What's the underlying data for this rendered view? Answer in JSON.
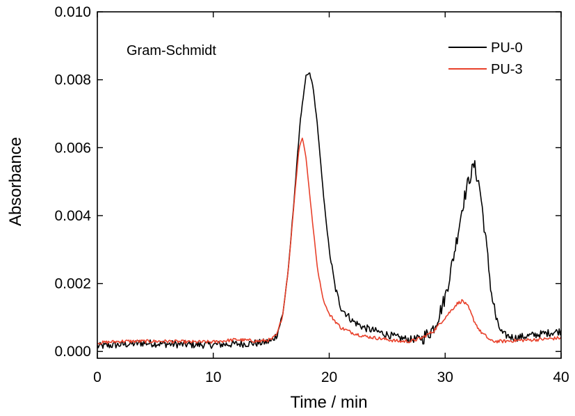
{
  "chart_data": {
    "type": "line",
    "title": "",
    "annotation": "Gram-Schmidt",
    "xlabel": "Time / min",
    "ylabel": "Absorbance",
    "xlim": [
      0,
      40
    ],
    "ylim": [
      -0.0002,
      0.01
    ],
    "x_ticks": [
      0,
      10,
      20,
      30,
      40
    ],
    "x_tick_labels": [
      "0",
      "10",
      "20",
      "30",
      "40"
    ],
    "y_ticks": [
      0.0,
      0.002,
      0.004,
      0.006,
      0.008,
      0.01
    ],
    "y_tick_labels": [
      "0.000",
      "0.002",
      "0.004",
      "0.006",
      "0.008",
      "0.010"
    ],
    "grid": false,
    "legend_position": "top-right",
    "series": [
      {
        "name": "PU-0",
        "color": "#000000",
        "noisy": true,
        "points": [
          [
            0,
            0.00015
          ],
          [
            2,
            0.0002
          ],
          [
            4,
            0.00025
          ],
          [
            6,
            0.00022
          ],
          [
            8,
            0.0002
          ],
          [
            10,
            0.0002
          ],
          [
            12,
            0.00022
          ],
          [
            14,
            0.00025
          ],
          [
            15,
            0.0003
          ],
          [
            15.5,
            0.0005
          ],
          [
            16,
            0.0011
          ],
          [
            16.5,
            0.0025
          ],
          [
            17,
            0.0046
          ],
          [
            17.5,
            0.0068
          ],
          [
            18,
            0.0081
          ],
          [
            18.3,
            0.0082
          ],
          [
            18.6,
            0.0078
          ],
          [
            19,
            0.0066
          ],
          [
            19.5,
            0.0046
          ],
          [
            20,
            0.003
          ],
          [
            20.5,
            0.0019
          ],
          [
            21,
            0.0013
          ],
          [
            22,
            0.0009
          ],
          [
            23,
            0.0007
          ],
          [
            24,
            0.0006
          ],
          [
            25,
            0.0005
          ],
          [
            26,
            0.0004
          ],
          [
            27,
            0.00035
          ],
          [
            28,
            0.0004
          ],
          [
            28.5,
            0.0005
          ],
          [
            29,
            0.0007
          ],
          [
            29.5,
            0.0011
          ],
          [
            30,
            0.0016
          ],
          [
            30.5,
            0.0024
          ],
          [
            31,
            0.0033
          ],
          [
            31.5,
            0.0043
          ],
          [
            32,
            0.005
          ],
          [
            32.5,
            0.0055
          ],
          [
            33,
            0.0048
          ],
          [
            33.5,
            0.0033
          ],
          [
            34,
            0.0017
          ],
          [
            34.5,
            0.0008
          ],
          [
            35,
            0.0005
          ],
          [
            36,
            0.0004
          ],
          [
            38,
            0.0005
          ],
          [
            40,
            0.0006
          ]
        ]
      },
      {
        "name": "PU-3",
        "color": "#e8402a",
        "noisy": true,
        "points": [
          [
            0,
            0.00025
          ],
          [
            2,
            0.0003
          ],
          [
            4,
            0.0003
          ],
          [
            6,
            0.0003
          ],
          [
            8,
            0.00028
          ],
          [
            10,
            0.00028
          ],
          [
            12,
            0.00035
          ],
          [
            14,
            0.0003
          ],
          [
            15,
            0.00035
          ],
          [
            15.5,
            0.0005
          ],
          [
            16,
            0.0011
          ],
          [
            16.5,
            0.0025
          ],
          [
            17,
            0.0045
          ],
          [
            17.4,
            0.006
          ],
          [
            17.7,
            0.0063
          ],
          [
            18,
            0.0057
          ],
          [
            18.5,
            0.004
          ],
          [
            19,
            0.0024
          ],
          [
            19.5,
            0.0015
          ],
          [
            20,
            0.0011
          ],
          [
            21,
            0.0007
          ],
          [
            22,
            0.00055
          ],
          [
            23,
            0.00045
          ],
          [
            24,
            0.0004
          ],
          [
            25,
            0.00035
          ],
          [
            26,
            0.0003
          ],
          [
            27,
            0.0003
          ],
          [
            28,
            0.0004
          ],
          [
            29,
            0.0006
          ],
          [
            30,
            0.001
          ],
          [
            30.5,
            0.0012
          ],
          [
            31,
            0.0014
          ],
          [
            31.5,
            0.0015
          ],
          [
            32,
            0.0013
          ],
          [
            32.5,
            0.0009
          ],
          [
            33,
            0.0006
          ],
          [
            34,
            0.0003
          ],
          [
            35,
            0.0003
          ],
          [
            36,
            0.00032
          ],
          [
            38,
            0.00035
          ],
          [
            40,
            0.0004
          ]
        ]
      }
    ]
  }
}
